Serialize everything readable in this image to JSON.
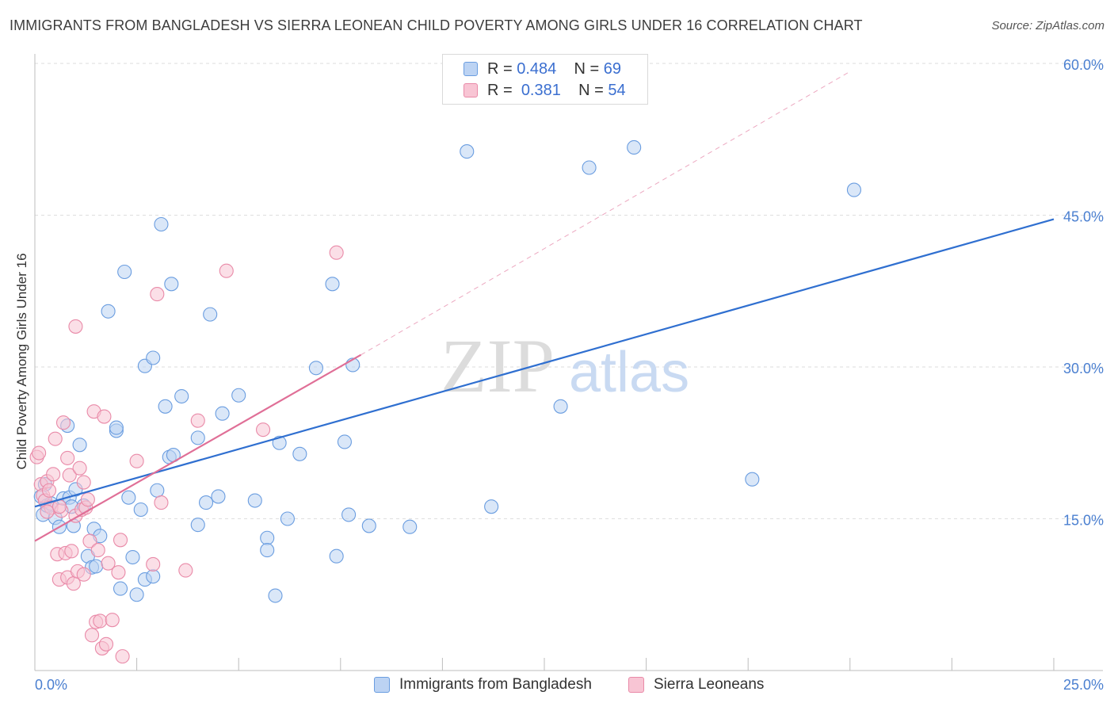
{
  "header": {
    "title": "IMMIGRANTS FROM BANGLADESH VS SIERRA LEONEAN CHILD POVERTY AMONG GIRLS UNDER 16 CORRELATION CHART",
    "source": "Source: ZipAtlas.com"
  },
  "watermark": {
    "zip": "ZIP",
    "atlas": "atlas"
  },
  "legend": {
    "rows": [
      {
        "r_label": "R =",
        "r_value": "0.484",
        "n_label": "N =",
        "n_value": "69"
      },
      {
        "r_label": "R =",
        "r_value": "0.381",
        "n_label": "N =",
        "n_value": "54"
      }
    ]
  },
  "chart_data": {
    "type": "scatter",
    "title": "IMMIGRANTS FROM BANGLADESH VS SIERRA LEONEAN CHILD POVERTY AMONG GIRLS UNDER 16 CORRELATION CHART",
    "ylabel": "Child Poverty Among Girls Under 16",
    "xlabel": "",
    "xlim": [
      0,
      25
    ],
    "ylim": [
      0,
      60
    ],
    "x_ticks": [
      "0.0%",
      "25.0%"
    ],
    "y_ticks": [
      {
        "value": 15,
        "label": "15.0%"
      },
      {
        "value": 30,
        "label": "30.0%"
      },
      {
        "value": 45,
        "label": "45.0%"
      },
      {
        "value": 60,
        "label": "60.0%"
      }
    ],
    "grid": true,
    "legend_position": "top-center",
    "colors": {
      "bangladesh_fill": "#bcd3f3",
      "bangladesh_stroke": "#6a9de0",
      "bangladesh_line": "#2f6fd0",
      "sierra_fill": "#f8c5d4",
      "sierra_stroke": "#e98aa8",
      "sierra_line": "#e06f97"
    },
    "series": [
      {
        "name": "Immigrants from Bangladesh",
        "trend": {
          "x": [
            0,
            25
          ],
          "y": [
            16.2,
            44.6
          ]
        },
        "points": [
          [
            0.15,
            17.2
          ],
          [
            0.2,
            15.4
          ],
          [
            0.3,
            16.3
          ],
          [
            0.4,
            16.5
          ],
          [
            0.5,
            15.1
          ],
          [
            0.6,
            14.2
          ],
          [
            0.7,
            17.0
          ],
          [
            0.8,
            24.2
          ],
          [
            0.85,
            17.1
          ],
          [
            0.9,
            16.2
          ],
          [
            0.95,
            14.3
          ],
          [
            1.0,
            17.9
          ],
          [
            1.1,
            22.3
          ],
          [
            1.2,
            16.3
          ],
          [
            1.3,
            11.3
          ],
          [
            1.4,
            10.2
          ],
          [
            1.45,
            14.0
          ],
          [
            1.5,
            10.3
          ],
          [
            1.6,
            13.3
          ],
          [
            1.8,
            35.5
          ],
          [
            2.0,
            23.7
          ],
          [
            2.0,
            24.0
          ],
          [
            2.1,
            8.1
          ],
          [
            2.2,
            39.4
          ],
          [
            2.3,
            17.1
          ],
          [
            2.4,
            11.2
          ],
          [
            2.5,
            7.5
          ],
          [
            2.6,
            15.9
          ],
          [
            2.7,
            9.0
          ],
          [
            2.7,
            30.1
          ],
          [
            2.9,
            9.3
          ],
          [
            2.9,
            30.9
          ],
          [
            3.0,
            17.8
          ],
          [
            3.1,
            44.1
          ],
          [
            3.2,
            26.1
          ],
          [
            3.3,
            21.1
          ],
          [
            3.35,
            38.2
          ],
          [
            3.4,
            21.3
          ],
          [
            3.6,
            27.1
          ],
          [
            4.0,
            14.4
          ],
          [
            4.0,
            23.0
          ],
          [
            4.2,
            16.6
          ],
          [
            4.3,
            35.2
          ],
          [
            4.5,
            17.2
          ],
          [
            4.6,
            25.4
          ],
          [
            5.0,
            27.2
          ],
          [
            5.4,
            16.8
          ],
          [
            5.7,
            13.1
          ],
          [
            5.7,
            11.9
          ],
          [
            5.9,
            7.4
          ],
          [
            6.0,
            22.5
          ],
          [
            6.2,
            15.0
          ],
          [
            6.5,
            21.4
          ],
          [
            6.9,
            29.9
          ],
          [
            7.3,
            38.2
          ],
          [
            7.4,
            11.3
          ],
          [
            7.6,
            22.6
          ],
          [
            7.7,
            15.4
          ],
          [
            7.8,
            30.2
          ],
          [
            8.2,
            14.3
          ],
          [
            9.2,
            14.2
          ],
          [
            10.6,
            51.3
          ],
          [
            11.2,
            16.2
          ],
          [
            12.9,
            26.1
          ],
          [
            13.6,
            49.7
          ],
          [
            14.7,
            51.7
          ],
          [
            17.6,
            18.9
          ],
          [
            20.1,
            47.5
          ],
          [
            0.25,
            18.4
          ]
        ]
      },
      {
        "name": "Sierra Leoneans",
        "trend": {
          "x": [
            0,
            8.0
          ],
          "y": [
            12.8,
            31.2
          ]
        },
        "trend_extension": {
          "x": [
            8.0,
            20.0
          ],
          "y": [
            31.2,
            59.2
          ]
        },
        "points": [
          [
            0.05,
            21.1
          ],
          [
            0.1,
            21.5
          ],
          [
            0.15,
            18.4
          ],
          [
            0.2,
            17.3
          ],
          [
            0.25,
            16.8
          ],
          [
            0.3,
            18.7
          ],
          [
            0.35,
            17.8
          ],
          [
            0.4,
            16.1
          ],
          [
            0.45,
            19.4
          ],
          [
            0.5,
            22.9
          ],
          [
            0.55,
            11.5
          ],
          [
            0.6,
            9.0
          ],
          [
            0.65,
            15.8
          ],
          [
            0.7,
            24.5
          ],
          [
            0.75,
            11.6
          ],
          [
            0.8,
            9.2
          ],
          [
            0.8,
            21.0
          ],
          [
            0.85,
            19.3
          ],
          [
            0.9,
            11.8
          ],
          [
            0.95,
            8.6
          ],
          [
            1.0,
            15.3
          ],
          [
            1.0,
            34.0
          ],
          [
            1.05,
            9.8
          ],
          [
            1.1,
            20.0
          ],
          [
            1.15,
            15.9
          ],
          [
            1.2,
            18.6
          ],
          [
            1.25,
            16.1
          ],
          [
            1.3,
            16.9
          ],
          [
            1.35,
            12.8
          ],
          [
            1.4,
            3.5
          ],
          [
            1.45,
            25.6
          ],
          [
            1.5,
            4.8
          ],
          [
            1.55,
            11.9
          ],
          [
            1.6,
            4.9
          ],
          [
            1.65,
            2.2
          ],
          [
            1.7,
            25.1
          ],
          [
            1.75,
            2.6
          ],
          [
            1.8,
            10.6
          ],
          [
            1.9,
            5.0
          ],
          [
            2.05,
            9.7
          ],
          [
            2.1,
            12.9
          ],
          [
            2.15,
            1.4
          ],
          [
            2.5,
            20.7
          ],
          [
            2.9,
            10.5
          ],
          [
            3.0,
            37.2
          ],
          [
            3.1,
            16.6
          ],
          [
            3.7,
            9.9
          ],
          [
            4.0,
            24.7
          ],
          [
            4.7,
            39.5
          ],
          [
            5.6,
            23.8
          ],
          [
            7.4,
            41.3
          ],
          [
            0.6,
            16.2
          ],
          [
            0.3,
            15.7
          ],
          [
            1.2,
            9.5
          ]
        ]
      }
    ]
  },
  "bottom_legend": {
    "items": [
      {
        "label": "Immigrants from Bangladesh"
      },
      {
        "label": "Sierra Leoneans"
      }
    ]
  }
}
